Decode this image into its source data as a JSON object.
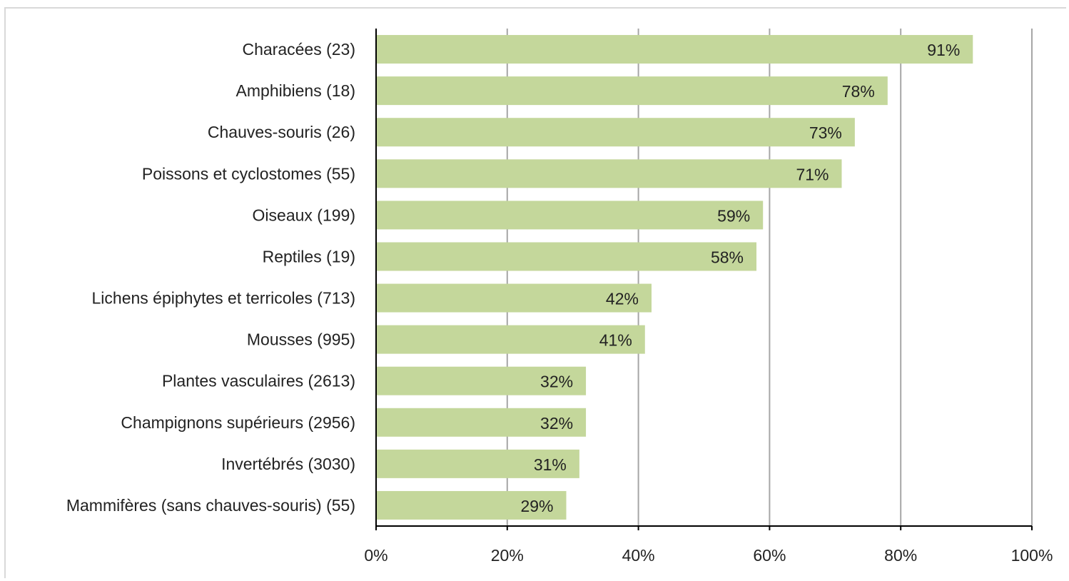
{
  "chart_data": {
    "type": "bar",
    "orientation": "horizontal",
    "categories": [
      "Characées (23)",
      "Amphibiens (18)",
      "Chauves-souris (26)",
      "Poissons et cyclostomes (55)",
      "Oiseaux (199)",
      "Reptiles (19)",
      "Lichens épiphytes et terricoles  (713)",
      "Mousses (995)",
      "Plantes vasculaires (2613)",
      "Champignons supérieurs (2956)",
      "Invertébrés (3030)",
      "Mammifères (sans chauves-souris) (55)"
    ],
    "values": [
      91,
      78,
      73,
      71,
      59,
      58,
      42,
      41,
      32,
      32,
      31,
      29
    ],
    "value_labels": [
      "91%",
      "78%",
      "73%",
      "71%",
      "59%",
      "58%",
      "42%",
      "41%",
      "32%",
      "32%",
      "31%",
      "29%"
    ],
    "xlim": [
      0,
      100
    ],
    "xticks": [
      0,
      20,
      40,
      60,
      80,
      100
    ],
    "xtick_labels": [
      "0%",
      "20%",
      "40%",
      "60%",
      "80%",
      "100%"
    ],
    "title": "",
    "xlabel": "",
    "ylabel": "",
    "grid": "vertical",
    "legend": "none",
    "colors": {
      "bar": "#c4d79b",
      "gridline": "#a6a6a6",
      "axis": "#000000",
      "text": "#222222"
    }
  }
}
